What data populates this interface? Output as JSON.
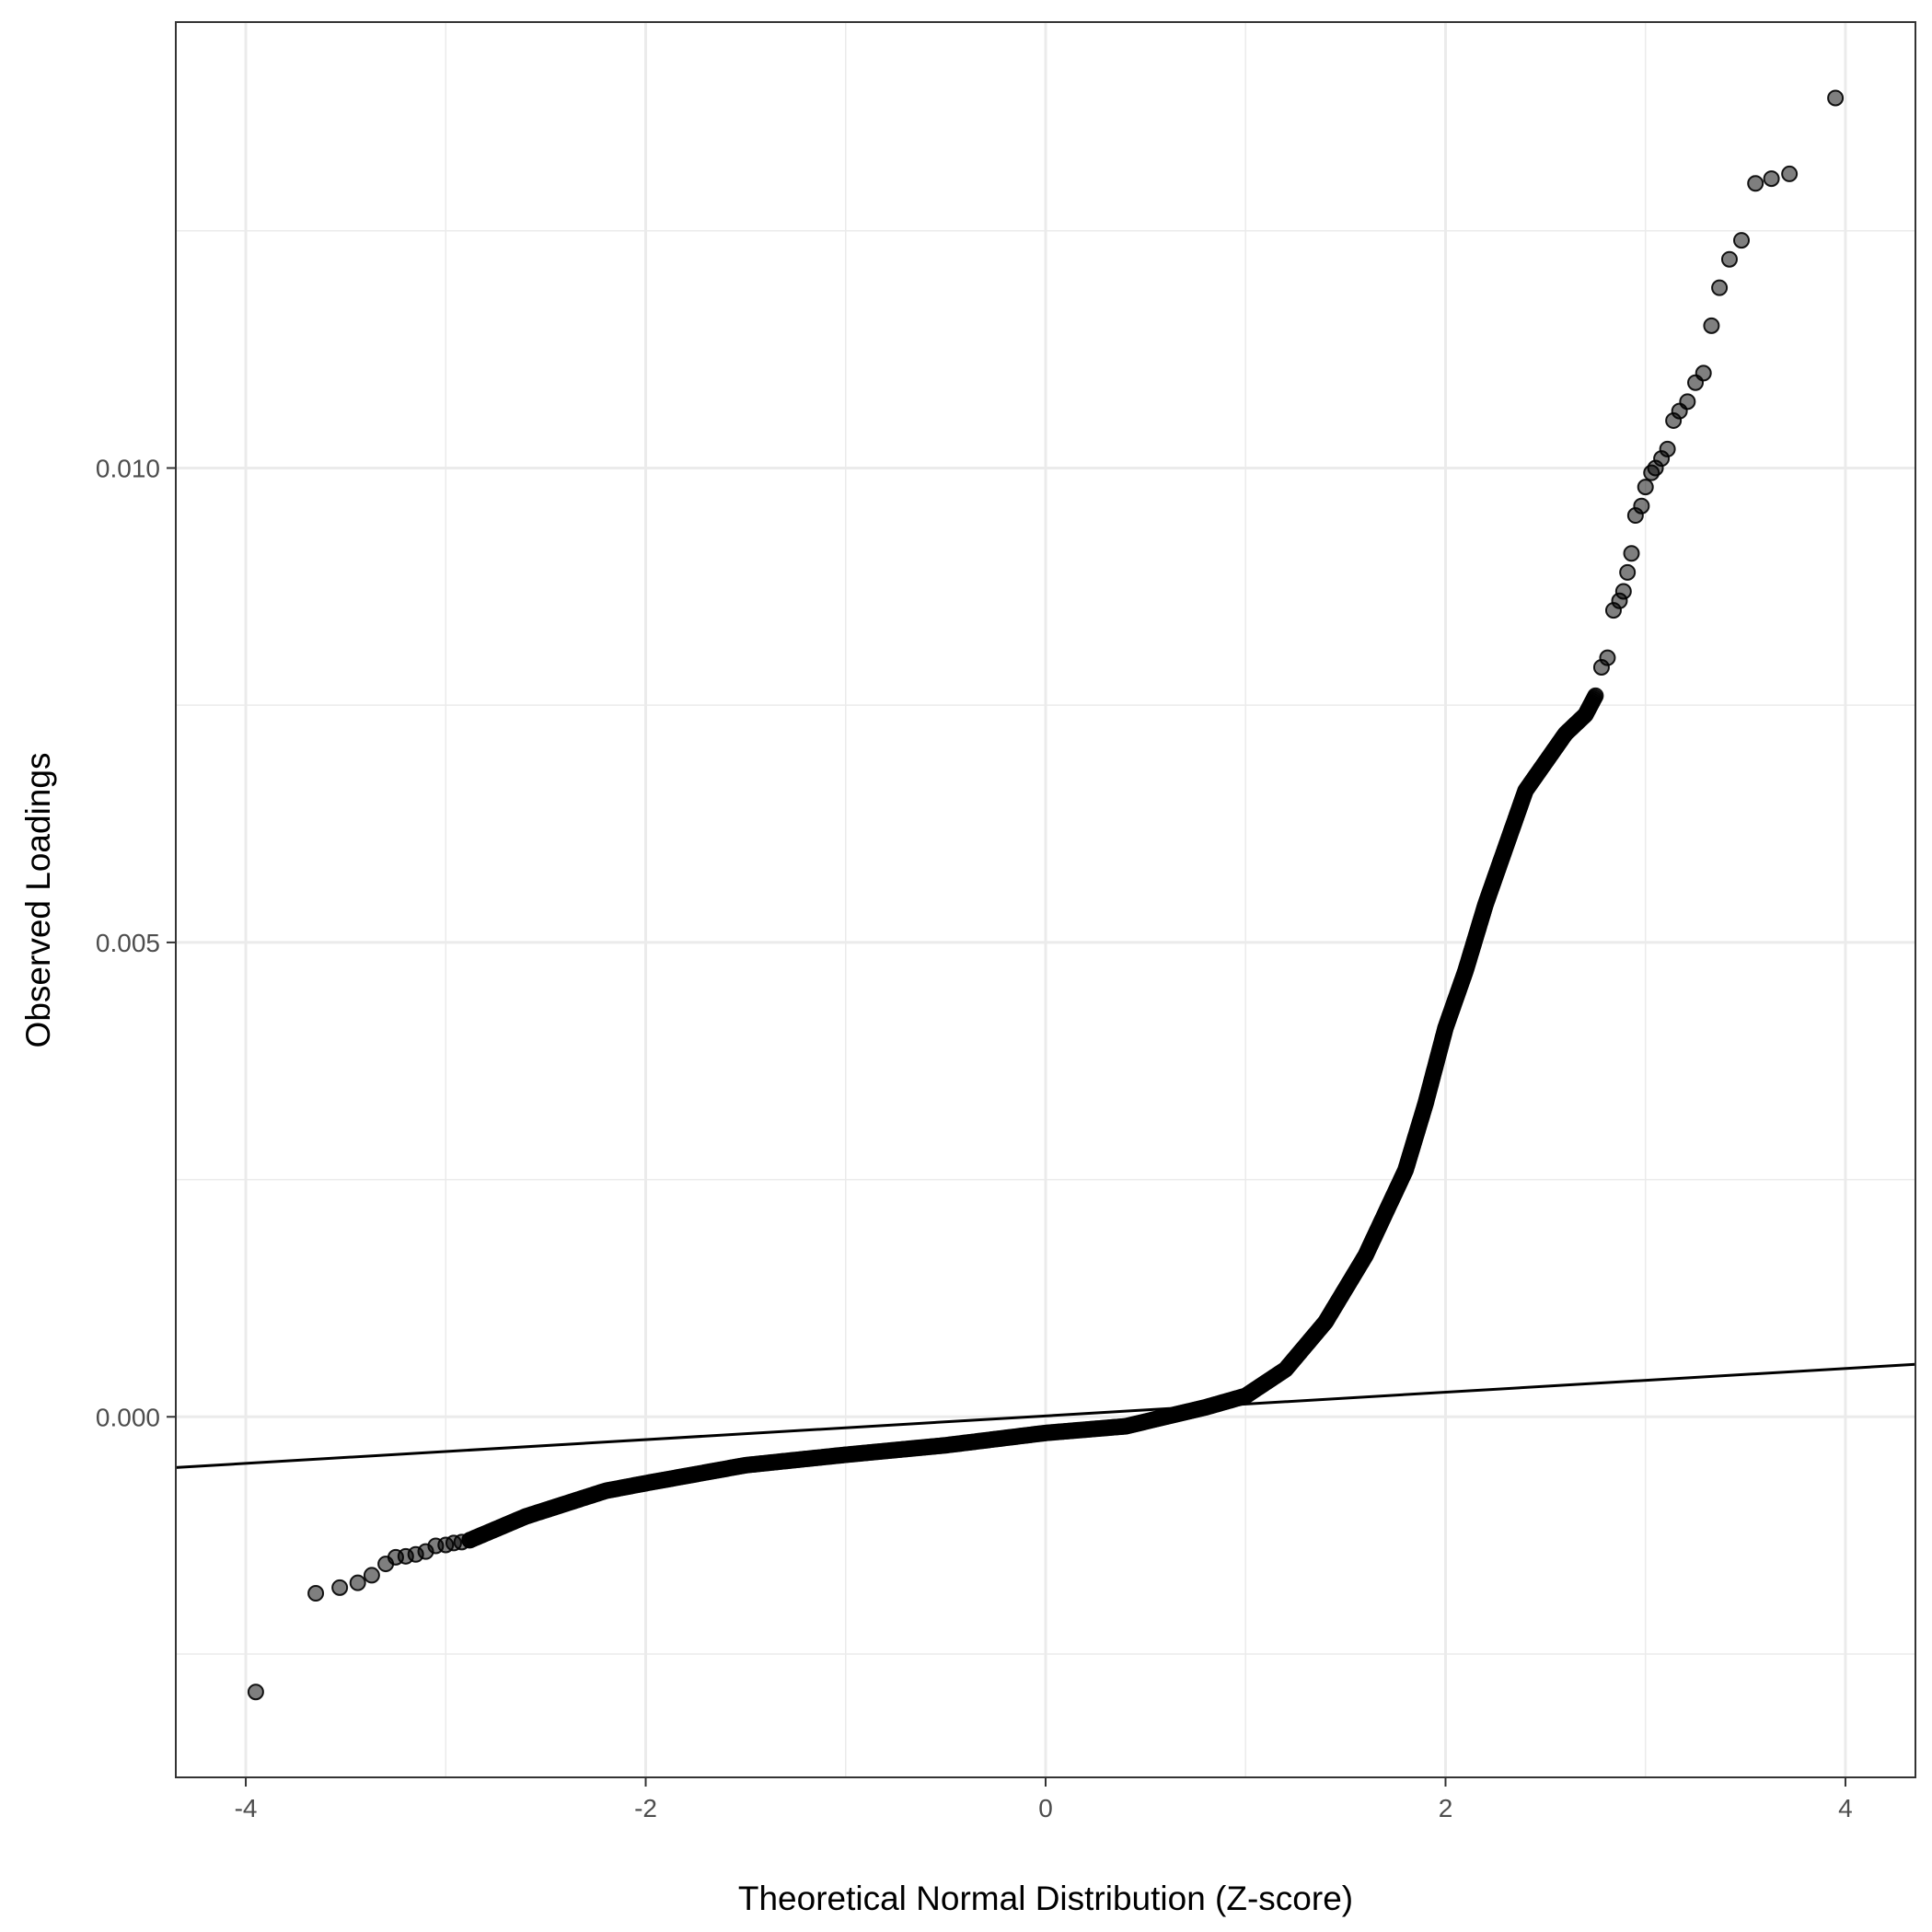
{
  "chart_data": {
    "type": "scatter",
    "title": "",
    "xlabel": "Theoretical Normal Distribution (Z-score)",
    "ylabel": "Observed Loadings",
    "xlim": [
      -4.35,
      4.35
    ],
    "ylim": [
      -0.0038,
      0.0147
    ],
    "x_ticks": [
      -4,
      -2,
      0,
      2,
      4
    ],
    "x_tick_labels": [
      "-4",
      "-2",
      "0",
      "2",
      "4"
    ],
    "y_ticks": [
      0.0,
      0.005,
      0.01
    ],
    "y_tick_labels": [
      "0.000",
      "0.005",
      "0.010"
    ],
    "grid": true,
    "legend": "none",
    "colors": {
      "points": "#000000",
      "point_opacity": 0.5,
      "reference_line": "#000000",
      "grid": "#ebebeb",
      "panel_border": "#333333",
      "tick_label": "#4d4d4d"
    },
    "reference_line": {
      "slope": 0.000125,
      "intercept": 9.5e-06
    },
    "tail_points": [
      {
        "x": -3.95,
        "y": -0.0029
      },
      {
        "x": -3.65,
        "y": -0.00186
      },
      {
        "x": -3.53,
        "y": -0.0018
      },
      {
        "x": -3.44,
        "y": -0.00175
      },
      {
        "x": -3.37,
        "y": -0.00167
      },
      {
        "x": -3.3,
        "y": -0.00155
      },
      {
        "x": -3.25,
        "y": -0.00148
      },
      {
        "x": -3.2,
        "y": -0.00147
      },
      {
        "x": -3.15,
        "y": -0.00145
      },
      {
        "x": -3.1,
        "y": -0.00142
      },
      {
        "x": -3.05,
        "y": -0.00136
      },
      {
        "x": -3.0,
        "y": -0.00135
      },
      {
        "x": -2.96,
        "y": -0.00133
      },
      {
        "x": -2.92,
        "y": -0.00132
      },
      {
        "x": -2.88,
        "y": -0.0013
      },
      {
        "x": 2.75,
        "y": 0.0076
      },
      {
        "x": 2.78,
        "y": 0.0079
      },
      {
        "x": 2.81,
        "y": 0.008
      },
      {
        "x": 2.84,
        "y": 0.0085
      },
      {
        "x": 2.87,
        "y": 0.0086
      },
      {
        "x": 2.89,
        "y": 0.0087
      },
      {
        "x": 2.91,
        "y": 0.0089
      },
      {
        "x": 2.93,
        "y": 0.0091
      },
      {
        "x": 2.95,
        "y": 0.0095
      },
      {
        "x": 2.98,
        "y": 0.0096
      },
      {
        "x": 3.0,
        "y": 0.0098
      },
      {
        "x": 3.03,
        "y": 0.00995
      },
      {
        "x": 3.05,
        "y": 0.01
      },
      {
        "x": 3.08,
        "y": 0.0101
      },
      {
        "x": 3.11,
        "y": 0.0102
      },
      {
        "x": 3.14,
        "y": 0.0105
      },
      {
        "x": 3.17,
        "y": 0.0106
      },
      {
        "x": 3.21,
        "y": 0.0107
      },
      {
        "x": 3.25,
        "y": 0.0109
      },
      {
        "x": 3.29,
        "y": 0.011
      },
      {
        "x": 3.33,
        "y": 0.0115
      },
      {
        "x": 3.37,
        "y": 0.0119
      },
      {
        "x": 3.42,
        "y": 0.0122
      },
      {
        "x": 3.48,
        "y": 0.0124
      },
      {
        "x": 3.55,
        "y": 0.013
      },
      {
        "x": 3.63,
        "y": 0.01305
      },
      {
        "x": 3.72,
        "y": 0.0131
      },
      {
        "x": 3.95,
        "y": 0.0139
      }
    ],
    "dense_curve": [
      {
        "x": -2.88,
        "y": -0.0013
      },
      {
        "x": -2.6,
        "y": -0.00105
      },
      {
        "x": -2.2,
        "y": -0.00078
      },
      {
        "x": -2.0,
        "y": -0.0007
      },
      {
        "x": -1.5,
        "y": -0.00051
      },
      {
        "x": -1.0,
        "y": -0.0004
      },
      {
        "x": -0.5,
        "y": -0.0003
      },
      {
        "x": 0.0,
        "y": -0.00017
      },
      {
        "x": 0.4,
        "y": -0.0001
      },
      {
        "x": 0.8,
        "y": 0.0001
      },
      {
        "x": 1.0,
        "y": 0.00022
      },
      {
        "x": 1.2,
        "y": 0.0005
      },
      {
        "x": 1.4,
        "y": 0.001
      },
      {
        "x": 1.6,
        "y": 0.0017
      },
      {
        "x": 1.8,
        "y": 0.0026
      },
      {
        "x": 1.9,
        "y": 0.0033
      },
      {
        "x": 2.0,
        "y": 0.0041
      },
      {
        "x": 2.1,
        "y": 0.0047
      },
      {
        "x": 2.2,
        "y": 0.0054
      },
      {
        "x": 2.3,
        "y": 0.006
      },
      {
        "x": 2.4,
        "y": 0.0066
      },
      {
        "x": 2.5,
        "y": 0.0069
      },
      {
        "x": 2.6,
        "y": 0.0072
      },
      {
        "x": 2.7,
        "y": 0.0074
      },
      {
        "x": 2.75,
        "y": 0.0076
      }
    ]
  }
}
